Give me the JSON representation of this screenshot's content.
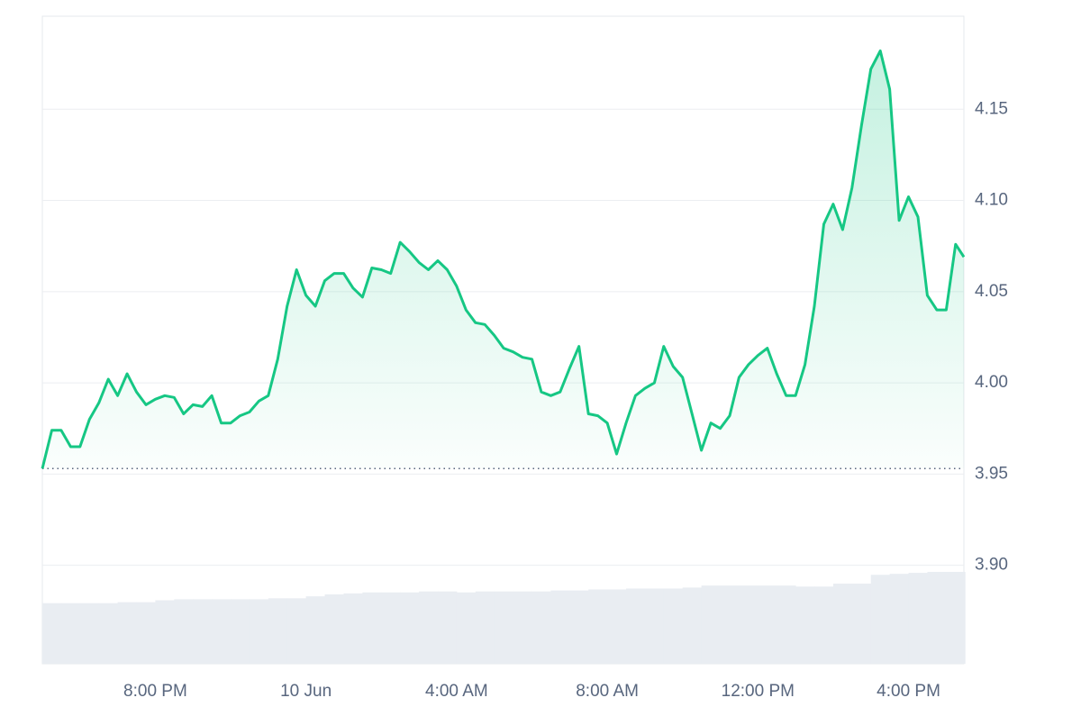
{
  "chart_data": {
    "type": "line",
    "x": [
      17,
      17.25,
      17.5,
      17.75,
      18,
      18.25,
      18.5,
      18.75,
      19,
      19.25,
      19.5,
      19.75,
      20,
      20.25,
      20.5,
      20.75,
      21,
      21.25,
      21.5,
      21.75,
      22,
      22.25,
      22.5,
      22.75,
      23,
      23.25,
      23.5,
      23.75,
      24,
      24.25,
      24.5,
      24.75,
      25,
      25.25,
      25.5,
      25.75,
      26,
      26.25,
      26.5,
      26.75,
      27,
      27.25,
      27.5,
      27.75,
      28,
      28.25,
      28.5,
      28.75,
      29,
      29.25,
      29.5,
      29.75,
      30,
      30.25,
      30.5,
      30.75,
      31,
      31.25,
      31.5,
      31.75,
      32,
      32.25,
      32.5,
      32.75,
      33,
      33.25,
      33.5,
      33.75,
      34,
      34.25,
      34.5,
      34.75,
      35,
      35.25,
      35.5,
      35.75,
      36,
      36.25,
      36.5,
      36.75,
      37,
      37.25,
      37.5,
      37.75,
      38,
      38.25,
      38.5,
      38.75,
      39,
      39.25,
      39.5,
      39.75,
      40,
      40.25,
      40.5,
      40.75,
      41,
      41.25,
      41.47
    ],
    "series": [
      {
        "color": "#16c784",
        "values": [
          3.953,
          3.974,
          3.974,
          3.965,
          3.965,
          3.98,
          3.989,
          4.002,
          3.993,
          4.005,
          3.995,
          3.988,
          3.991,
          3.993,
          3.992,
          3.983,
          3.988,
          3.987,
          3.993,
          3.978,
          3.978,
          3.982,
          3.984,
          3.99,
          3.993,
          4.013,
          4.042,
          4.062,
          4.048,
          4.042,
          4.056,
          4.06,
          4.06,
          4.052,
          4.047,
          4.063,
          4.062,
          4.06,
          4.077,
          4.072,
          4.066,
          4.062,
          4.067,
          4.062,
          4.053,
          4.04,
          4.033,
          4.032,
          4.026,
          4.019,
          4.017,
          4.014,
          4.013,
          3.995,
          3.993,
          3.995,
          4.008,
          4.02,
          3.983,
          3.982,
          3.978,
          3.961,
          3.978,
          3.993,
          3.997,
          4.0,
          4.02,
          4.009,
          4.003,
          3.983,
          3.963,
          3.978,
          3.975,
          3.982,
          4.003,
          4.01,
          4.015,
          4.019,
          4.005,
          3.993,
          3.993,
          4.01,
          4.042,
          4.087,
          4.098,
          4.084,
          4.107,
          4.141,
          4.172,
          4.182,
          4.161,
          4.089,
          4.102,
          4.091,
          4.048,
          4.04,
          4.04,
          4.076,
          4.069
        ]
      }
    ],
    "reference_line": 3.953,
    "volume": {
      "color": "#e9edf2",
      "x": [
        17,
        17.5,
        18,
        18.5,
        19,
        19.5,
        20,
        20.5,
        21,
        21.5,
        22,
        22.5,
        23,
        23.5,
        24,
        24.5,
        25,
        25.5,
        26,
        26.5,
        27,
        27.5,
        28,
        28.5,
        29,
        29.5,
        30,
        30.5,
        31,
        31.5,
        32,
        32.5,
        33,
        33.5,
        34,
        34.5,
        35,
        35.5,
        36,
        36.5,
        37,
        37.5,
        38,
        38.5,
        39,
        39.5,
        40,
        40.5,
        41
      ],
      "values": [
        62,
        62,
        62,
        62,
        63,
        63,
        65,
        66,
        66,
        66,
        66,
        66,
        67,
        67,
        69,
        71,
        72,
        73,
        73,
        73,
        74,
        74,
        73,
        74,
        74,
        74,
        74,
        75,
        75,
        76,
        76,
        77,
        77,
        77,
        78,
        80,
        80,
        80,
        80,
        80,
        79,
        79,
        82,
        82,
        91,
        92,
        93,
        94,
        94
      ]
    },
    "xlim": [
      17,
      41.47
    ],
    "ylim": [
      3.846,
      4.201
    ],
    "xticks": [
      {
        "value": 20,
        "label": "8:00 PM"
      },
      {
        "value": 24,
        "label": "10 Jun"
      },
      {
        "value": 28,
        "label": "4:00 AM"
      },
      {
        "value": 32,
        "label": "8:00 AM"
      },
      {
        "value": 36,
        "label": "12:00 PM"
      },
      {
        "value": 40,
        "label": "4:00 PM"
      }
    ],
    "yticks": [
      {
        "value": 3.9,
        "label": "3.90"
      },
      3.95,
      {
        "value": 4.0,
        "label": "4.00"
      },
      4.05,
      {
        "value": 4.1,
        "label": "4.10"
      },
      4.15
    ],
    "grid": true
  }
}
